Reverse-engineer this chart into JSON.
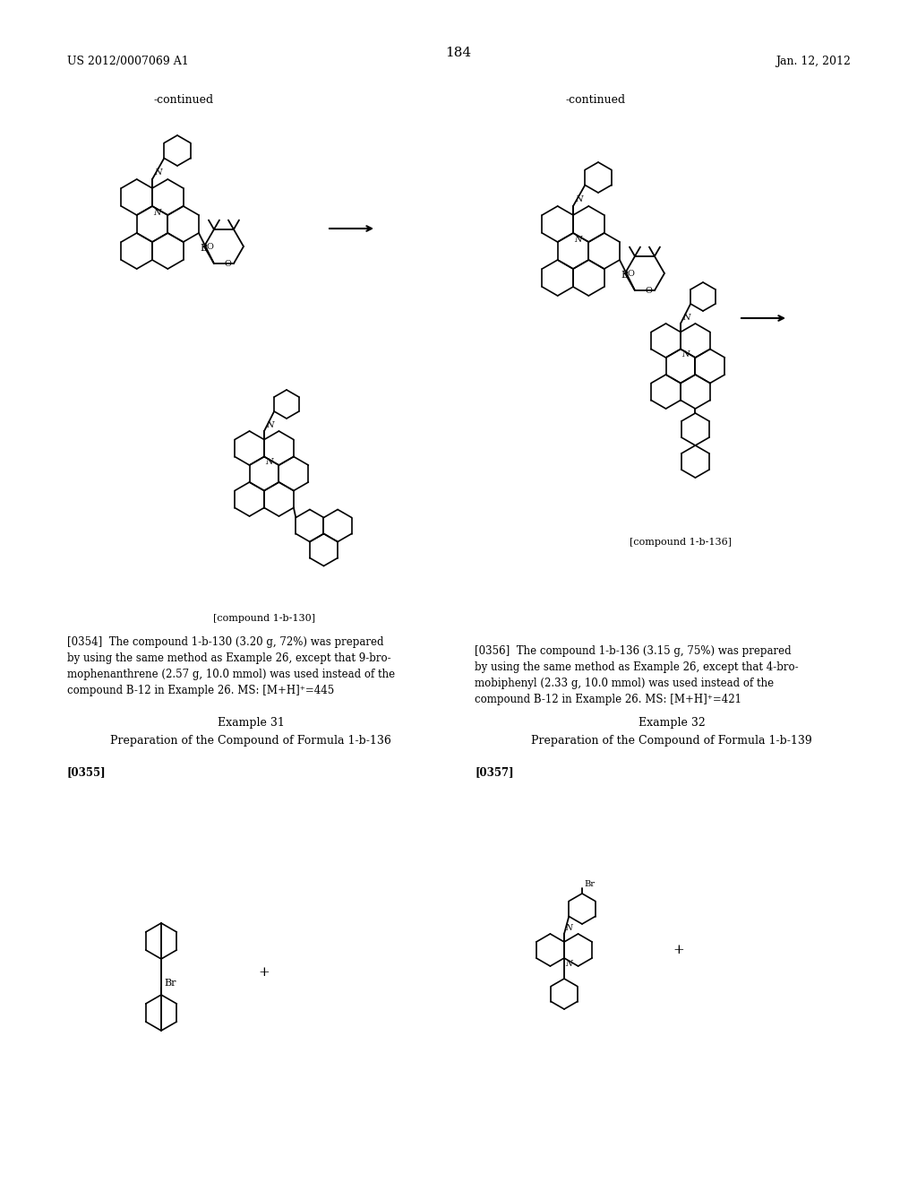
{
  "page_number": "184",
  "patent_left": "US 2012/0007069 A1",
  "patent_right": "Jan. 12, 2012",
  "background_color": "#ffffff",
  "text_color": "#000000",
  "font_size_body": 9,
  "font_size_small": 8,
  "font_size_header": 10,
  "sections": {
    "top_left_label": "-continued",
    "top_right_label": "-continued",
    "compound_130_label": "[compound 1-b-130]",
    "compound_136_label": "[compound 1-b-136]",
    "para_354": "[0354] The compound 1-b-130 (3.20 g, 72%) was prepared\nby using the same method as Example 26, except that 9-bro-\nmophenanthrene (2.57 g, 10.0 mmol) was used instead of the\ncompound B-12 in Example 26. MS: [M+H]⁺=445",
    "example_31_title": "Example 31",
    "example_31_prep": "Preparation of the Compound of Formula 1-b-136",
    "para_355": "[0355]",
    "para_356": "[0356] The compound 1-b-136 (3.15 g, 75%) was prepared\nby using the same method as Example 26, except that 4-bro-\nmobiphenyl (2.33 g, 10.0 mmol) was used instead of the\ncompound B-12 in Example 26. MS: [M+H]⁺=421",
    "example_32_title": "Example 32",
    "example_32_prep": "Preparation of the Compound of Formula 1-b-139",
    "para_357": "[0357]"
  }
}
